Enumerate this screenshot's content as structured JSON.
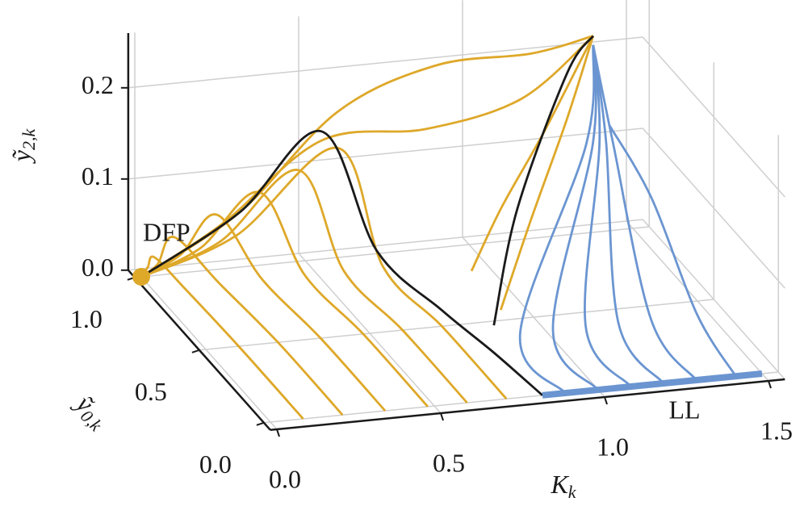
{
  "chart_data": {
    "type": "trajectory3d",
    "x_label": "K",
    "x_label_sub": "k",
    "y_label": "ỹ",
    "y_label_sub": "0,k",
    "z_label": "ỹ",
    "z_label_sub": "2,k",
    "xlim": [
      -0.02,
      1.55
    ],
    "ylim": [
      -0.05,
      1.05
    ],
    "zlim": [
      0,
      0.26
    ],
    "xticks": [
      {
        "value": 0,
        "label": "0.0"
      },
      {
        "value": 0.5,
        "label": "0.5"
      },
      {
        "value": 1,
        "label": "1.0"
      },
      {
        "value": 1.5,
        "label": "1.5"
      }
    ],
    "yticks": [
      {
        "value": 0,
        "label": "0.0"
      },
      {
        "value": 0.5,
        "label": "0.5"
      },
      {
        "value": 1,
        "label": "1.0"
      }
    ],
    "zticks": [
      {
        "value": 0,
        "label": "0.0"
      },
      {
        "value": 0.1,
        "label": "0.1"
      },
      {
        "value": 0.2,
        "label": "0.2"
      }
    ],
    "grid": true,
    "trajectories": [
      {
        "color": "#dea829",
        "K": [
          0.1,
          0.1,
          0.07,
          0.04,
          0.02,
          0
        ],
        "y0": [
          0,
          0.5,
          0.85,
          1,
          1,
          1
        ],
        "y2": [
          0,
          0,
          0.01,
          0.02,
          0.01,
          0
        ]
      },
      {
        "color": "#dea829",
        "K": [
          0.22,
          0.22,
          0.18,
          0.1,
          0.05,
          0
        ],
        "y0": [
          0,
          0.5,
          0.85,
          1,
          1,
          1
        ],
        "y2": [
          0,
          0,
          0.01,
          0.04,
          0.012,
          0
        ]
      },
      {
        "color": "#dea829",
        "K": [
          0.35,
          0.35,
          0.31,
          0.23,
          0.12,
          0
        ],
        "y0": [
          0,
          0.5,
          0.85,
          1,
          1,
          1
        ],
        "y2": [
          0,
          0,
          0.01,
          0.06,
          0.02,
          0
        ]
      },
      {
        "color": "#dea829",
        "K": [
          0.48,
          0.48,
          0.44,
          0.36,
          0.18,
          0
        ],
        "y0": [
          0,
          0.5,
          0.85,
          1,
          1,
          1
        ],
        "y2": [
          0,
          0,
          0.01,
          0.08,
          0.025,
          0
        ]
      },
      {
        "color": "#dea829",
        "K": [
          0.6,
          0.6,
          0.56,
          0.48,
          0.24,
          0
        ],
        "y0": [
          0,
          0.5,
          0.85,
          1,
          1,
          1
        ],
        "y2": [
          0,
          0,
          0.01,
          0.1,
          0.03,
          0
        ]
      },
      {
        "color": "#dea829",
        "K": [
          0.72,
          0.72,
          0.68,
          0.6,
          0.29,
          0
        ],
        "y0": [
          0,
          0.5,
          0.85,
          1,
          1,
          1
        ],
        "y2": [
          0,
          0,
          0.01,
          0.12,
          0.035,
          0
        ]
      },
      {
        "color": "#dea829",
        "K": [
          1.3,
          1.15,
          0.9,
          0.6,
          0.3,
          0
        ],
        "y0": [
          0.8,
          0.9,
          1,
          1,
          1,
          1
        ],
        "y2": [
          0.25,
          0.22,
          0.2,
          0.16,
          0.06,
          0
        ]
      },
      {
        "color": "#dea829",
        "K": [
          1.3,
          1.1,
          0.85,
          0.55,
          0.25,
          0
        ],
        "y0": [
          0.8,
          0.85,
          0.95,
          1,
          1,
          1
        ],
        "y2": [
          0.25,
          0.18,
          0.14,
          0.13,
          0.05,
          0
        ]
      },
      {
        "color": "#dea829",
        "K": [
          1.3,
          1.15,
          1.0,
          0.85
        ],
        "y0": [
          0.8,
          0.8,
          0.75,
          0.6
        ],
        "y2": [
          0.25,
          0.15,
          0.08,
          0.04
        ]
      },
      {
        "color": "#dea829",
        "K": [
          1.3,
          1.2,
          1.05,
          0.88
        ],
        "y0": [
          0.8,
          0.75,
          0.65,
          0.45
        ],
        "y2": [
          0.25,
          0.17,
          0.08,
          0.02
        ]
      },
      {
        "color": "#1a1a1a",
        "K": [
          0.83,
          0.8,
          0.76,
          0.68,
          0.55,
          0.3,
          0
        ],
        "y0": [
          0,
          0.3,
          0.6,
          0.9,
          1,
          1,
          1
        ],
        "y2": [
          0,
          0,
          0,
          0.02,
          0.14,
          0.06,
          0
        ]
      },
      {
        "color": "#1a1a1a",
        "K": [
          0.8,
          0.95,
          1.2,
          1.3
        ],
        "y0": [
          0.3,
          0.5,
          0.75,
          0.8
        ],
        "y2": [
          0.03,
          0.12,
          0.22,
          0.25
        ]
      },
      {
        "color": "#6b95d1",
        "K": [
          1.3,
          1.24,
          0.9,
          0.9
        ],
        "y0": [
          0.8,
          0.7,
          0.35,
          0
        ],
        "y2": [
          0.24,
          0.15,
          0.01,
          0
        ]
      },
      {
        "color": "#6b95d1",
        "K": [
          1.3,
          1.26,
          1.0,
          1.0
        ],
        "y0": [
          0.8,
          0.7,
          0.35,
          0
        ],
        "y2": [
          0.24,
          0.15,
          0.01,
          0
        ]
      },
      {
        "color": "#6b95d1",
        "K": [
          1.3,
          1.28,
          1.1,
          1.1
        ],
        "y0": [
          0.8,
          0.7,
          0.35,
          0
        ],
        "y2": [
          0.24,
          0.15,
          0.01,
          0
        ]
      },
      {
        "color": "#6b95d1",
        "K": [
          1.3,
          1.3,
          1.2,
          1.2
        ],
        "y0": [
          0.8,
          0.7,
          0.35,
          0
        ],
        "y2": [
          0.24,
          0.15,
          0.01,
          0
        ]
      },
      {
        "color": "#6b95d1",
        "K": [
          1.3,
          1.32,
          1.3,
          1.3
        ],
        "y0": [
          0.8,
          0.7,
          0.35,
          0
        ],
        "y2": [
          0.24,
          0.15,
          0.01,
          0
        ]
      },
      {
        "color": "#6b95d1",
        "K": [
          1.35,
          1.4,
          1.42,
          1.42
        ],
        "y0": [
          0.8,
          0.6,
          0.3,
          0
        ],
        "y2": [
          0.15,
          0.1,
          0.02,
          0
        ]
      }
    ],
    "annotations": [
      {
        "text": "DFP",
        "color": "#dea829",
        "K": 0,
        "y0": 1,
        "y2": 0
      },
      {
        "text": "LL",
        "color": "#6b95d1",
        "K": [
          0.83,
          1.5
        ],
        "y0": [
          0,
          0
        ],
        "y2": [
          0,
          0
        ]
      }
    ]
  }
}
